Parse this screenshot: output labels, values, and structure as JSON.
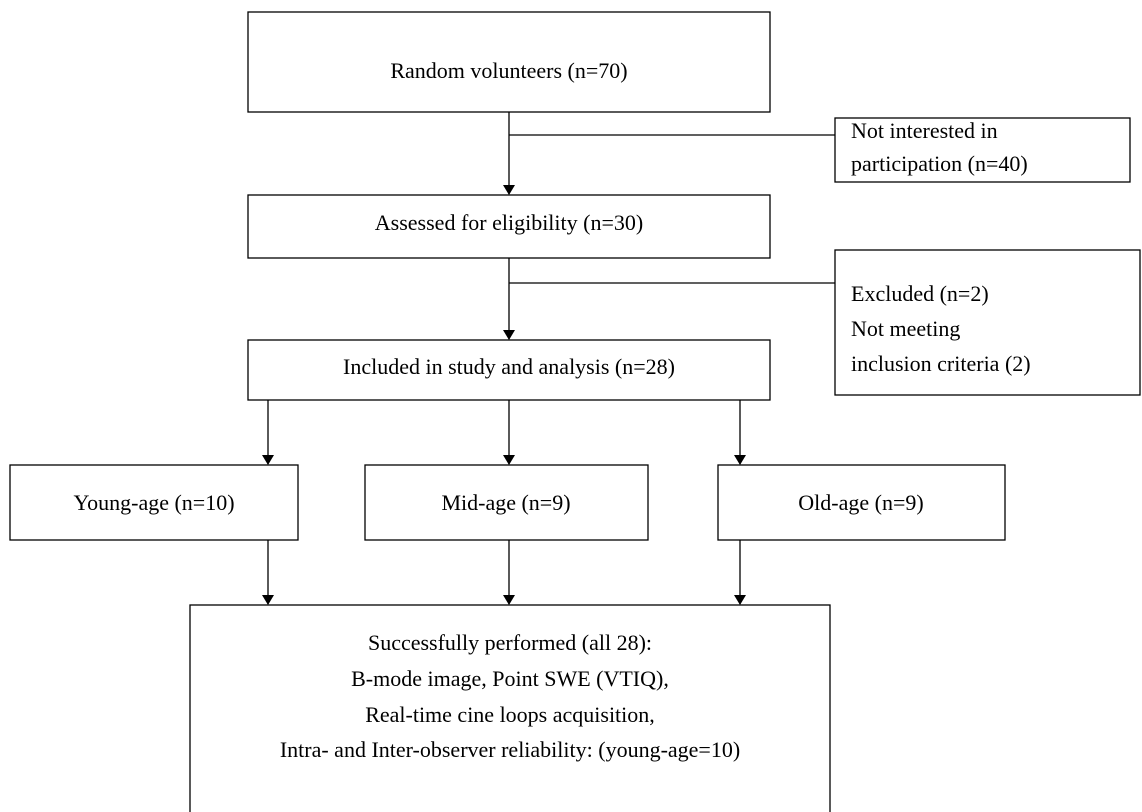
{
  "nodes": [
    {
      "lines": [
        "Random volunteers (n=70)"
      ]
    },
    {
      "lines": [
        "Not interested in",
        "participation (n=40)"
      ]
    },
    {
      "lines": [
        "Assessed for eligibility (n=30)"
      ]
    },
    {
      "lines": [
        "Excluded (n=2)",
        "Not meeting",
        "inclusion criteria (2)"
      ]
    },
    {
      "lines": [
        "Included in study and analysis (n=28)"
      ]
    },
    {
      "lines": [
        "Young-age (n=10)"
      ]
    },
    {
      "lines": [
        "Mid-age (n=9)"
      ]
    },
    {
      "lines": [
        "Old-age (n=9)"
      ]
    },
    {
      "lines": [
        "Successfully performed (all 28):",
        "B-mode image, Point SWE (VTIQ),",
        "Real-time cine loops acquisition,",
        "Intra- and Inter-observer reliability: (young-age=10)"
      ]
    }
  ]
}
